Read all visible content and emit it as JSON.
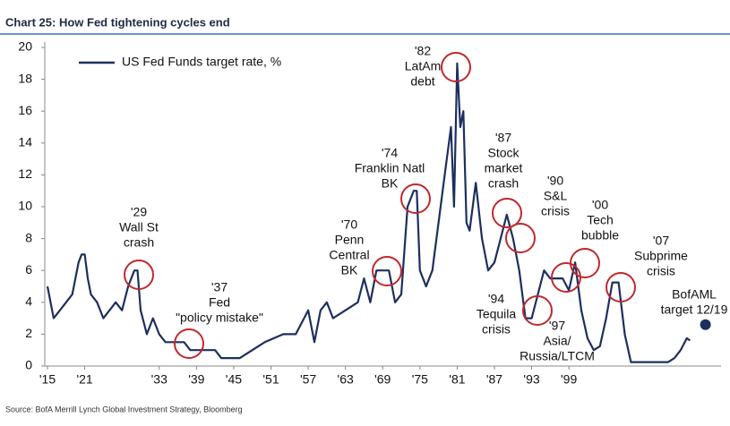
{
  "chart_data": {
    "type": "line",
    "title": "Chart 25: How Fed tightening cycles end",
    "source": "Source: BofA Merrill Lynch Global Investment Strategy, Bloomberg",
    "series": [
      {
        "name": "US Fed Funds target rate, %",
        "color": "#1c2f5e",
        "x": [
          1915,
          1916,
          1917,
          1918,
          1919,
          1920,
          1920.5,
          1921,
          1921.5,
          1922,
          1923,
          1924,
          1925,
          1926,
          1927,
          1928,
          1929,
          1929.5,
          1930,
          1931,
          1932,
          1933,
          1934,
          1937,
          1938,
          1942,
          1943,
          1946,
          1948,
          1950,
          1953,
          1955,
          1957,
          1958,
          1959,
          1960,
          1961,
          1963,
          1965,
          1966,
          1967,
          1968,
          1969,
          1970,
          1971,
          1972,
          1973,
          1974,
          1974.5,
          1975,
          1976,
          1977,
          1978,
          1979,
          1980,
          1980.5,
          1981,
          1981.5,
          1982,
          1982.5,
          1983,
          1984,
          1985,
          1986,
          1987,
          1988,
          1989,
          1990,
          1991,
          1992,
          1993,
          1994,
          1995,
          1996,
          1998,
          1999,
          2000,
          2001,
          2002,
          2003,
          2004,
          2005,
          2006,
          2007,
          2008,
          2009,
          2015,
          2016,
          2017,
          2018,
          2018.5
        ],
        "values": [
          5,
          3,
          3.5,
          4,
          4.5,
          6.5,
          7,
          7,
          5.5,
          4.5,
          4,
          3,
          3.5,
          4,
          3.5,
          5,
          6,
          6,
          3.5,
          2,
          3,
          2,
          1.5,
          1.5,
          1,
          1,
          0.5,
          0.5,
          1,
          1.5,
          2,
          2,
          3.5,
          1.5,
          3.5,
          4,
          3,
          3.5,
          4,
          5.5,
          4,
          6,
          6,
          6,
          4,
          4.5,
          10,
          11,
          11,
          6,
          5,
          6,
          9,
          12,
          15,
          10,
          19,
          15,
          16,
          9,
          8.5,
          11.5,
          8,
          6,
          6.5,
          8,
          9.5,
          8,
          6,
          3,
          3,
          4.5,
          6,
          5.5,
          5.5,
          4.75,
          6.5,
          3.5,
          1.75,
          1,
          1.25,
          3,
          5.25,
          5.25,
          2,
          0.25,
          0.25,
          0.5,
          1,
          1.75,
          1.6
        ]
      }
    ],
    "target": {
      "lines": [
        "BofAML",
        "target 12/19"
      ],
      "x": 2021,
      "value": 2.6,
      "color": "#1c2f5e"
    },
    "annotations": [
      [
        "'29",
        "Wall St",
        "crash"
      ],
      [
        "'37",
        "Fed",
        "\"policy mistake\""
      ],
      [
        "'70",
        "Penn",
        "Central",
        "BK"
      ],
      [
        "'74",
        "Franklin Natl",
        "BK"
      ],
      [
        "'82",
        "LatAm",
        "debt"
      ],
      [
        "'87",
        "Stock",
        "market",
        "crash"
      ],
      [
        "'90",
        "S&L",
        "crisis"
      ],
      [
        "'94",
        "Tequila",
        "crisis"
      ],
      [
        "'97",
        "Asia/",
        "Russia/LTCM"
      ],
      [
        "'00",
        "Tech",
        "bubble"
      ],
      [
        "'07",
        "Subprime",
        "crisis"
      ]
    ],
    "circle_color": "#c0282d",
    "xlim": [
      1915,
      2022.5
    ],
    "xticks": [
      {
        "value": 1915,
        "label": "'15"
      },
      {
        "value": 1921,
        "label": "'21"
      },
      {
        "value": 1933,
        "label": "'33"
      },
      {
        "value": 1939,
        "label": "'39"
      },
      {
        "value": 1945,
        "label": "'45"
      },
      {
        "value": 1951,
        "label": "'51"
      },
      {
        "value": 1957,
        "label": "'57"
      },
      {
        "value": 1963,
        "label": "'63"
      },
      {
        "value": 1969,
        "label": "'69"
      },
      {
        "value": 1975,
        "label": "'75"
      },
      {
        "value": 1981,
        "label": "'81"
      },
      {
        "value": 1987,
        "label": "'87"
      },
      {
        "value": 1993,
        "label": "'93"
      },
      {
        "value": 1999,
        "label": "'99"
      }
    ],
    "ylim": [
      0,
      20
    ],
    "yticks": [
      0,
      2,
      4,
      6,
      8,
      10,
      12,
      14,
      16,
      18,
      20
    ]
  }
}
